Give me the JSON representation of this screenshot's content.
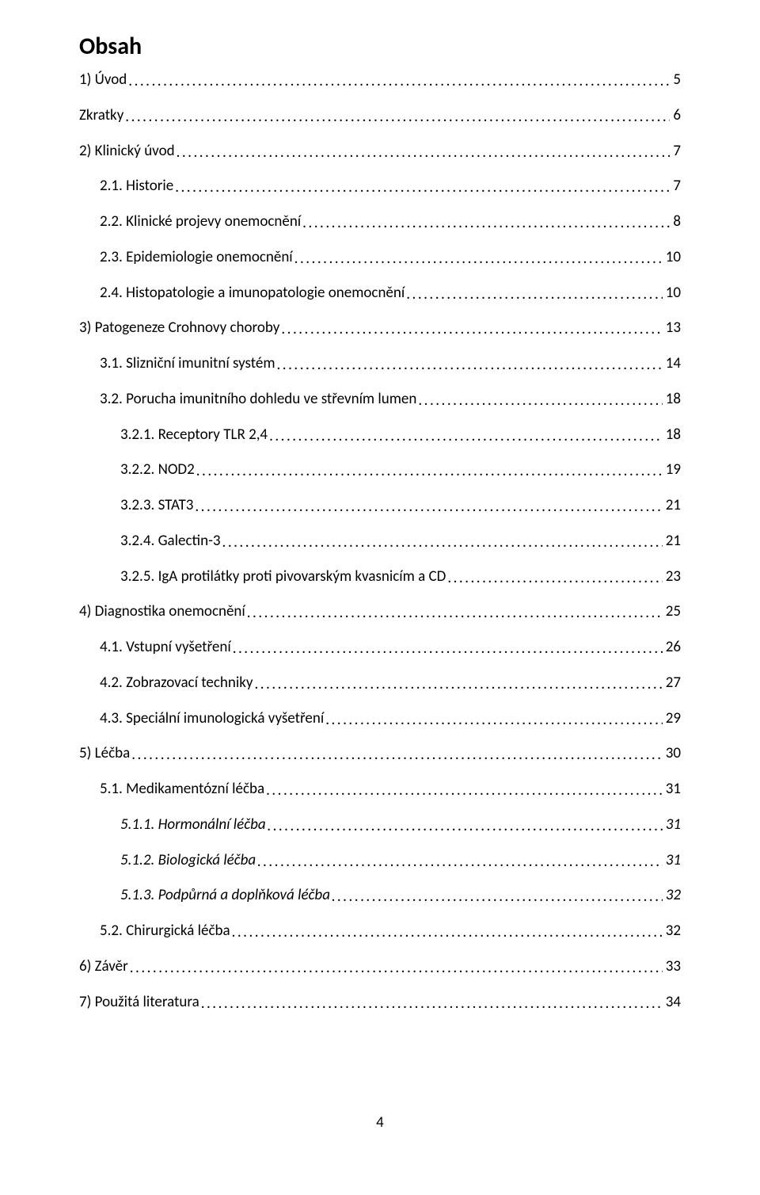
{
  "title": "Obsah",
  "entries": [
    {
      "label": "1) Úvod",
      "page": "5",
      "indent": 0,
      "italic": false
    },
    {
      "label": "Zkratky",
      "page": "6",
      "indent": 0,
      "italic": false
    },
    {
      "label": "2) Klinický úvod",
      "page": "7",
      "indent": 0,
      "italic": false
    },
    {
      "label": "2.1. Historie",
      "page": "7",
      "indent": 1,
      "italic": false
    },
    {
      "label": "2.2. Klinické projevy onemocnění",
      "page": "8",
      "indent": 1,
      "italic": false
    },
    {
      "label": "2.3. Epidemiologie onemocnění",
      "page": "10",
      "indent": 1,
      "italic": false
    },
    {
      "label": "2.4. Histopatologie a imunopatologie onemocnění",
      "page": "10",
      "indent": 1,
      "italic": false
    },
    {
      "label": "3) Patogeneze Crohnovy choroby",
      "page": "13",
      "indent": 0,
      "italic": false
    },
    {
      "label": "3.1. Slizniční imunitní systém",
      "page": "14",
      "indent": 1,
      "italic": false
    },
    {
      "label": "3.2. Porucha imunitního dohledu ve střevním lumen",
      "page": "18",
      "indent": 1,
      "italic": false
    },
    {
      "label": "3.2.1. Receptory TLR 2,4",
      "page": "18",
      "indent": 2,
      "italic": false
    },
    {
      "label": "3.2.2. NOD2",
      "page": "19",
      "indent": 2,
      "italic": false
    },
    {
      "label": "3.2.3. STAT3",
      "page": "21",
      "indent": 2,
      "italic": false
    },
    {
      "label": "3.2.4. Galectin-3",
      "page": "21",
      "indent": 2,
      "italic": false
    },
    {
      "label": "3.2.5. IgA protilátky proti pivovarským kvasnicím a CD",
      "page": "23",
      "indent": 2,
      "italic": false
    },
    {
      "label": "4) Diagnostika onemocnění",
      "page": "25",
      "indent": 0,
      "italic": false
    },
    {
      "label": "4.1. Vstupní vyšetření",
      "page": "26",
      "indent": 1,
      "italic": false
    },
    {
      "label": "4.2.  Zobrazovací techniky",
      "page": "27",
      "indent": 1,
      "italic": false
    },
    {
      "label": "4.3. Speciální imunologická vyšetření",
      "page": "29",
      "indent": 1,
      "italic": false
    },
    {
      "label": "5) Léčba",
      "page": "30",
      "indent": 0,
      "italic": false
    },
    {
      "label": "5.1. Medikamentózní léčba",
      "page": "31",
      "indent": 1,
      "italic": false
    },
    {
      "label": "5.1.1. Hormonální léčba",
      "page": "31",
      "indent": 2,
      "italic": true
    },
    {
      "label": "5.1.2. Biologická léčba",
      "page": "31",
      "indent": 2,
      "italic": true
    },
    {
      "label": "5.1.3. Podpůrná a doplňková léčba",
      "page": "32",
      "indent": 2,
      "italic": true
    },
    {
      "label": "5.2. Chirurgická léčba",
      "page": "32",
      "indent": 1,
      "italic": false
    },
    {
      "label": "6) Závěr",
      "page": "33",
      "indent": 0,
      "italic": false
    },
    {
      "label": "7) Použitá literatura",
      "page": "34",
      "indent": 0,
      "italic": false
    }
  ],
  "pageNumber": "4",
  "colors": {
    "text": "#000000",
    "background": "#ffffff"
  },
  "typography": {
    "title_fontsize": 30,
    "entry_fontsize": 19,
    "font_family": "Calibri"
  }
}
